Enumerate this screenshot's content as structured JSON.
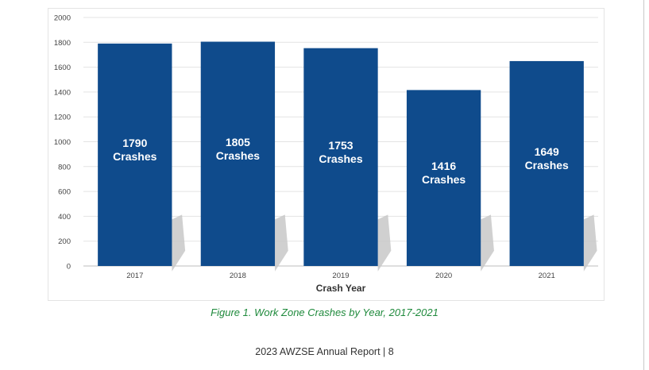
{
  "chart_data": {
    "type": "bar",
    "categories": [
      "2017",
      "2018",
      "2019",
      "2020",
      "2021"
    ],
    "values": [
      1790,
      1805,
      1753,
      1416,
      1649
    ],
    "data_labels": [
      [
        "1790",
        "Crashes"
      ],
      [
        "1805",
        "Crashes"
      ],
      [
        "1753",
        "Crashes"
      ],
      [
        "1416",
        "Crashes"
      ],
      [
        "1649",
        "Crashes"
      ]
    ],
    "title": "",
    "xlabel": "Crash Year",
    "ylabel": "",
    "ylim": [
      0,
      2000
    ],
    "yticks": [
      0,
      200,
      400,
      600,
      800,
      1000,
      1200,
      1400,
      1600,
      1800,
      2000
    ],
    "grid": true,
    "bar_color": "#0f4b8c",
    "shadow_color": "#c8c8c8"
  },
  "caption": "Figure 1. Work Zone Crashes by Year, 2017-2021",
  "footer": "2023 AWZSE Annual Report  |  8"
}
